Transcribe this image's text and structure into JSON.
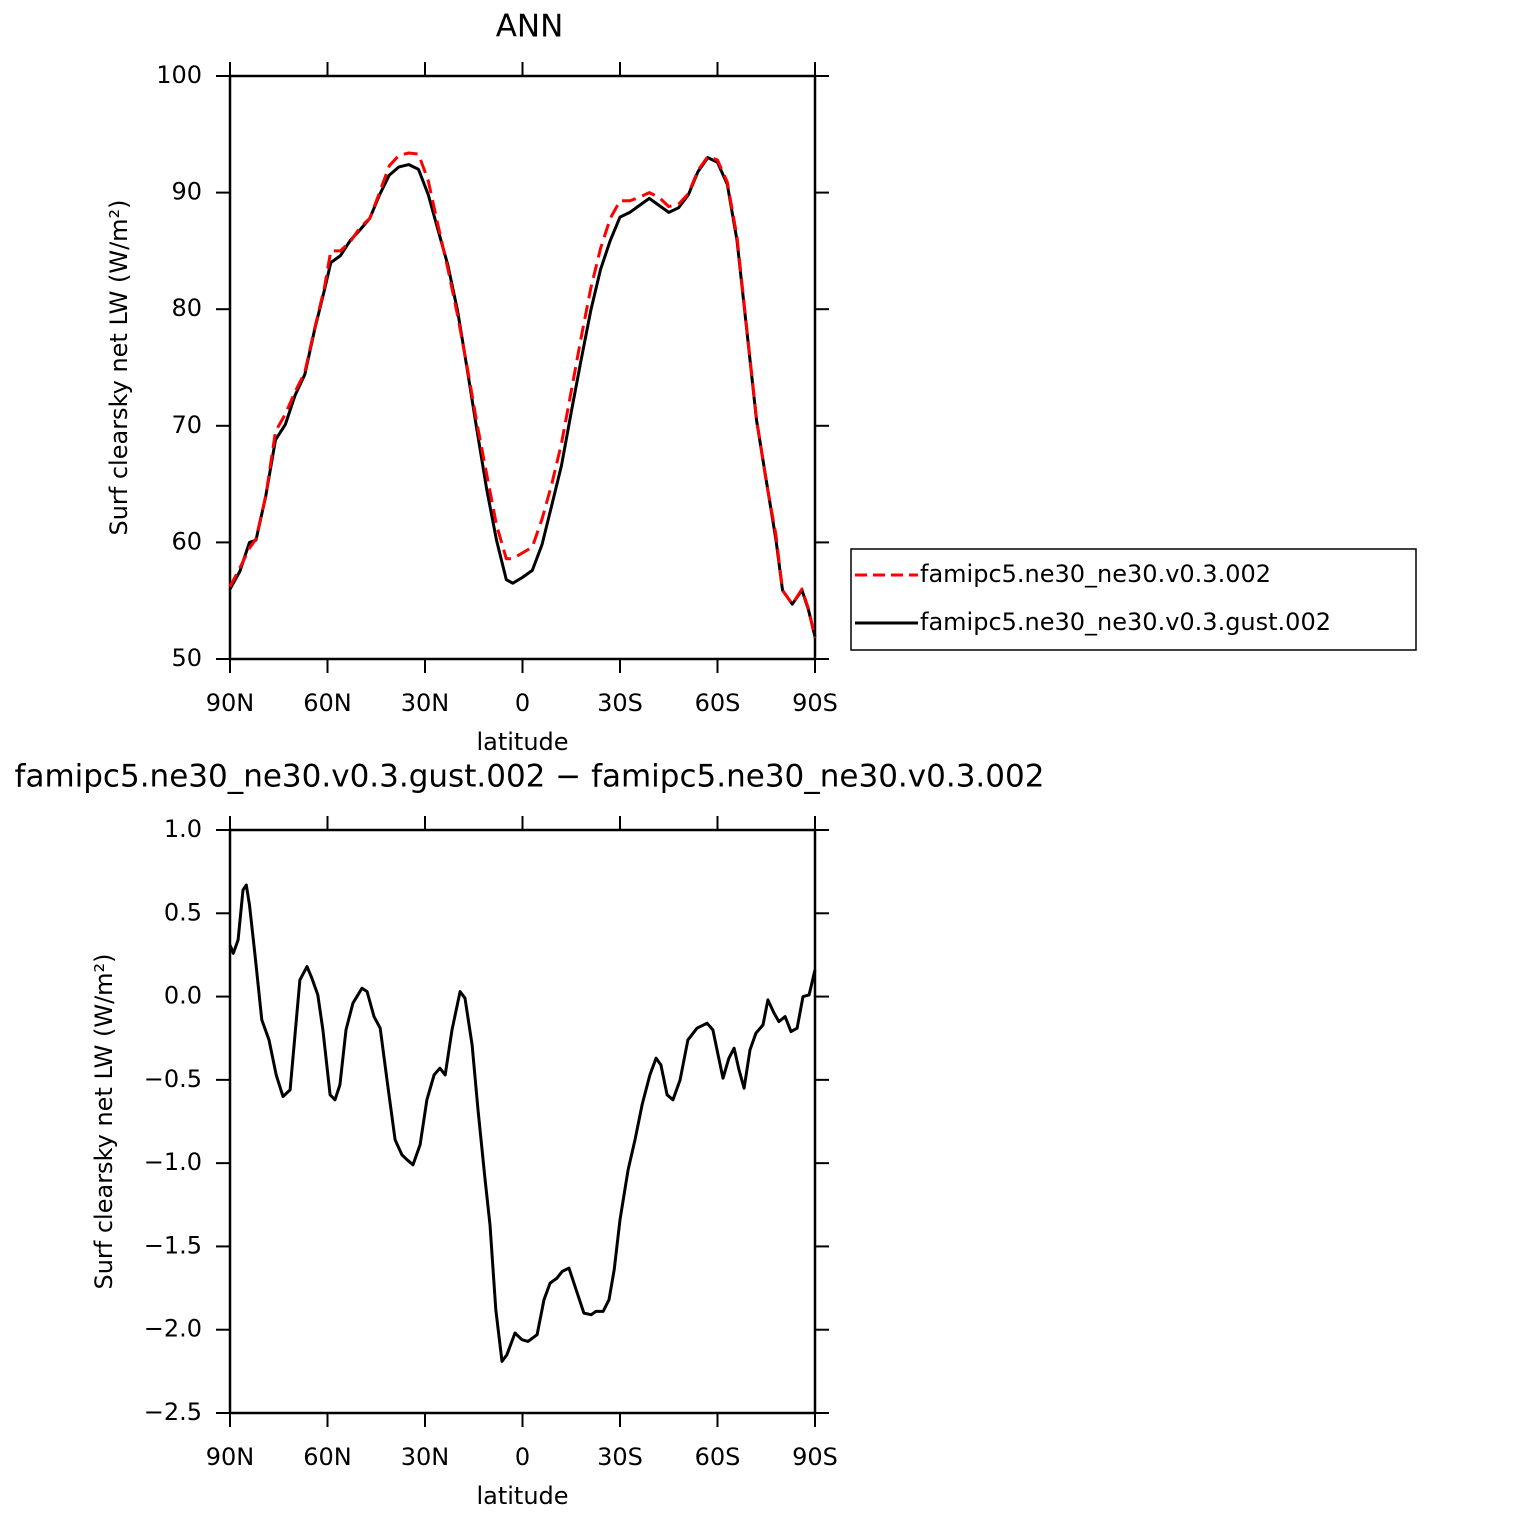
{
  "chart_data": [
    {
      "type": "line",
      "title": "ANN",
      "xlabel": "latitude",
      "ylabel": "Surf clearsky net LW (W/m²)",
      "x": [
        90,
        87,
        84,
        82,
        79,
        76,
        73,
        70,
        67,
        64,
        61,
        59,
        56,
        53,
        50,
        47,
        44,
        41,
        38,
        35,
        32,
        29,
        26,
        23,
        20,
        17,
        14,
        11,
        8,
        5,
        3,
        0,
        -3,
        -6,
        -9,
        -12,
        -15,
        -18,
        -21,
        -24,
        -27,
        -30,
        -33,
        -36,
        -39,
        -42,
        -45,
        -48,
        -51,
        -54,
        -57,
        -60,
        -63,
        -66,
        -69,
        -72,
        -75,
        -78,
        -80,
        -83,
        -86,
        -88,
        -90
      ],
      "series": [
        {
          "name": "famipc5.ne30_ne30.v0.3.002",
          "color": "#ff0000",
          "line_style": "dashed",
          "values": [
            56.2,
            57.8,
            59.5,
            60.3,
            64,
            69.5,
            71,
            72.9,
            74.6,
            78.3,
            81.8,
            85.0,
            85.0,
            85.8,
            87.0,
            87.8,
            90.0,
            92.3,
            93.2,
            93.4,
            93.3,
            91.0,
            87.2,
            83.5,
            79.5,
            75.0,
            70.2,
            65.8,
            61.5,
            58.6,
            58.6,
            59.1,
            59.6,
            62.0,
            65.0,
            68.5,
            73.0,
            77.5,
            81.8,
            85.2,
            87.8,
            89.3,
            89.3,
            89.6,
            90.0,
            89.6,
            88.8,
            89.0,
            89.9,
            91.9,
            93.1,
            92.8,
            90.9,
            86.2,
            78.3,
            70.6,
            65.2,
            60.6,
            55.9,
            54.7,
            56.0,
            54.3,
            51.8
          ]
        },
        {
          "name": "famipc5.ne30_ne30.v0.3.gust.002",
          "color": "#000000",
          "line_style": "solid",
          "values": [
            56,
            57.5,
            60,
            60.2,
            64,
            68.8,
            70.1,
            72.6,
            74.4,
            78.2,
            81.6,
            84.0,
            84.6,
            85.9,
            86.8,
            87.8,
            89.8,
            91.5,
            92.2,
            92.4,
            92.0,
            89.8,
            86.8,
            83.8,
            79.9,
            74.8,
            69.6,
            64.5,
            60.2,
            56.8,
            56.5,
            57.0,
            57.6,
            59.8,
            63.2,
            66.6,
            71.2,
            75.6,
            79.9,
            83.4,
            85.9,
            87.9,
            88.3,
            88.9,
            89.5,
            88.9,
            88.3,
            88.7,
            89.8,
            91.8,
            93.0,
            92.6,
            90.7,
            85.9,
            78.2,
            70.5,
            65.3,
            60.2,
            55.9,
            54.7,
            55.9,
            54.2,
            51.9
          ]
        }
      ],
      "xlim": [
        90,
        -90
      ],
      "xticks": [
        {
          "value": 90,
          "label": "90N"
        },
        {
          "value": 60,
          "label": "60N"
        },
        {
          "value": 30,
          "label": "30N"
        },
        0,
        {
          "value": -30,
          "label": "30S"
        },
        {
          "value": -60,
          "label": "60S"
        },
        {
          "value": -90,
          "label": "90S"
        }
      ],
      "ylim": [
        50,
        100
      ],
      "yticks": [
        50,
        60,
        70,
        80,
        90,
        100
      ],
      "legend_position": "right"
    },
    {
      "type": "line",
      "title": "famipc5.ne30_ne30.v0.3.gust.002 − famipc5.ne30_ne30.v0.3.002",
      "xlabel": "latitude",
      "ylabel": "Surf clearsky net LW (W/m²)",
      "x": [
        90,
        89,
        87.5,
        86,
        85,
        84,
        82.3,
        80.2,
        78,
        75.8,
        73.7,
        71.5,
        70,
        68.5,
        66.3,
        64.8,
        63,
        61.4,
        59.2,
        57.7,
        56.2,
        54.3,
        52.2,
        49.4,
        47.8,
        45.7,
        43.8,
        41.7,
        39.2,
        37.1,
        35.5,
        33.7,
        31.5,
        29.4,
        27.2,
        25.4,
        23.8,
        21.7,
        19.2,
        17.7,
        15.5,
        13.7,
        11.5,
        10,
        8.2,
        6.3,
        4.8,
        2.3,
        0.2,
        -1.7,
        -4.5,
        -6.6,
        -8.5,
        -10.6,
        -12.2,
        -14.3,
        -16.5,
        -18.9,
        -21.1,
        -22.6,
        -24.8,
        -26.6,
        -28.2,
        -30,
        -32.5,
        -34.6,
        -36.8,
        -39.2,
        -41.1,
        -42.6,
        -44.5,
        -46.3,
        -48.5,
        -50.9,
        -53.7,
        -56.8,
        -58.6,
        -60.2,
        -61.7,
        -63.5,
        -65.1,
        -66.6,
        -68.2,
        -70,
        -71.8,
        -74,
        -75.5,
        -77.4,
        -78.9,
        -80.8,
        -82.6,
        -84.5,
        -86.3,
        -88.2,
        -90
      ],
      "values": [
        0.31,
        0.26,
        0.34,
        0.64,
        0.67,
        0.55,
        0.25,
        -0.14,
        -0.26,
        -0.47,
        -0.6,
        -0.56,
        -0.23,
        0.1,
        0.18,
        0.11,
        0.01,
        -0.2,
        -0.59,
        -0.62,
        -0.53,
        -0.2,
        -0.04,
        0.05,
        0.03,
        -0.12,
        -0.19,
        -0.5,
        -0.86,
        -0.95,
        -0.98,
        -1.01,
        -0.89,
        -0.62,
        -0.47,
        -0.43,
        -0.47,
        -0.2,
        0.03,
        -0.01,
        -0.29,
        -0.68,
        -1.1,
        -1.37,
        -1.88,
        -2.19,
        -2.15,
        -2.02,
        -2.06,
        -2.07,
        -2.03,
        -1.82,
        -1.72,
        -1.69,
        -1.65,
        -1.63,
        -1.76,
        -1.9,
        -1.91,
        -1.89,
        -1.89,
        -1.82,
        -1.64,
        -1.34,
        -1.04,
        -0.86,
        -0.65,
        -0.47,
        -0.37,
        -0.41,
        -0.59,
        -0.62,
        -0.5,
        -0.26,
        -0.19,
        -0.16,
        -0.2,
        -0.35,
        -0.49,
        -0.37,
        -0.31,
        -0.44,
        -0.55,
        -0.32,
        -0.22,
        -0.17,
        -0.02,
        -0.1,
        -0.15,
        -0.12,
        -0.21,
        -0.19,
        0,
        0.01,
        0.16
      ],
      "color": "#000000",
      "xlim": [
        90,
        -90
      ],
      "xticks": [
        {
          "value": 90,
          "label": "90N"
        },
        {
          "value": 60,
          "label": "60N"
        },
        {
          "value": 30,
          "label": "30N"
        },
        0,
        {
          "value": -30,
          "label": "30S"
        },
        {
          "value": -60,
          "label": "60S"
        },
        {
          "value": -90,
          "label": "90S"
        }
      ],
      "ylim": [
        -2.5,
        1.0
      ],
      "yticks": [
        {
          "value": -2.5,
          "label": "−2.5"
        },
        {
          "value": -2,
          "label": "−2.0"
        },
        {
          "value": -1.5,
          "label": "−1.5"
        },
        {
          "value": -1,
          "label": "−1.0"
        },
        {
          "value": -0.5,
          "label": "−0.5"
        },
        {
          "value": 0,
          "label": "0.0"
        },
        {
          "value": 0.5,
          "label": "0.5"
        },
        {
          "value": 1,
          "label": "1.0"
        }
      ]
    }
  ]
}
